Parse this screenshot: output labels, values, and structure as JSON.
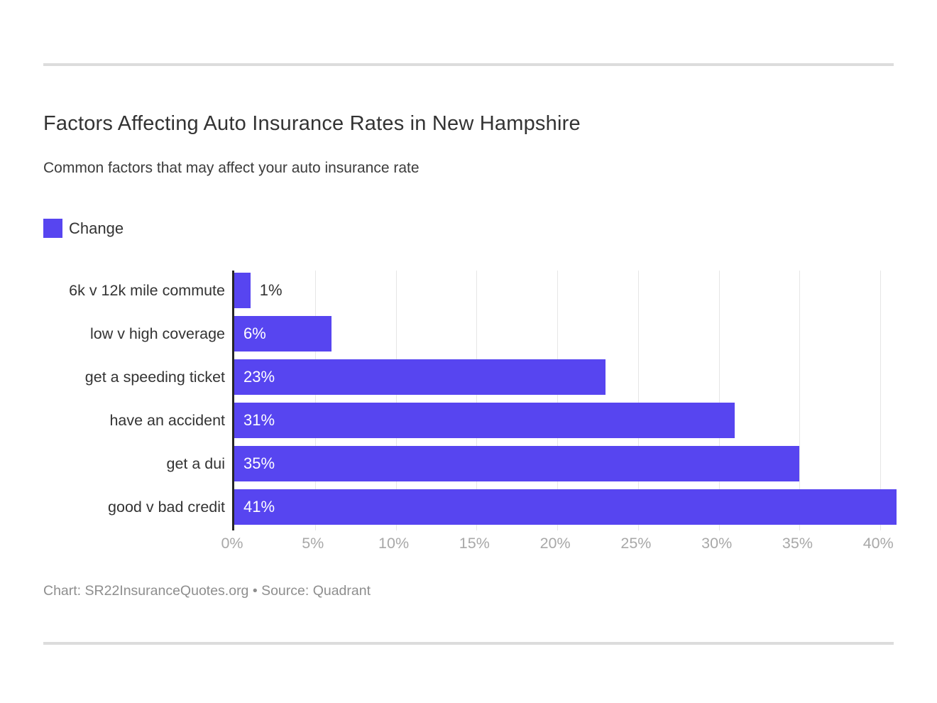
{
  "page": {
    "title": "Factors Affecting Auto Insurance Rates in New Hampshire",
    "subtitle": "Common factors that may affect your auto insurance rate",
    "footer": "Chart: SR22InsuranceQuotes.org • Source: Quadrant"
  },
  "legend": {
    "label": "Change"
  },
  "colors": {
    "bar": "#5745f0",
    "axis_line": "#262626",
    "gridline": "#e6e6e6",
    "category_text": "#333333",
    "value_inside_text": "#ffffff",
    "value_outside_text": "#333333",
    "tick_text": "#a8a8a8",
    "divider": "#dcdcdc",
    "footer_text": "#8e8e8e"
  },
  "chart_data": {
    "type": "bar",
    "orientation": "horizontal",
    "title": "Factors Affecting Auto Insurance Rates in New Hampshire",
    "subtitle": "Common factors that may affect your auto insurance rate",
    "series_name": "Change",
    "categories": [
      "6k v 12k mile commute",
      "low v high coverage",
      "get a speeding ticket",
      "have an accident",
      "get a dui",
      "good v bad credit"
    ],
    "values": [
      1,
      6,
      23,
      31,
      35,
      41
    ],
    "value_labels": [
      "1%",
      "6%",
      "23%",
      "31%",
      "35%",
      "41%"
    ],
    "xlabel": "",
    "ylabel": "",
    "xlim": [
      0,
      41
    ],
    "x_tick_values": [
      0,
      5,
      10,
      15,
      20,
      25,
      30,
      35,
      40
    ],
    "x_tick_labels": [
      "0%",
      "5%",
      "10%",
      "15%",
      "20%",
      "25%",
      "30%",
      "35%",
      "40%"
    ],
    "grid": "vertical",
    "legend_position": "top-left"
  }
}
